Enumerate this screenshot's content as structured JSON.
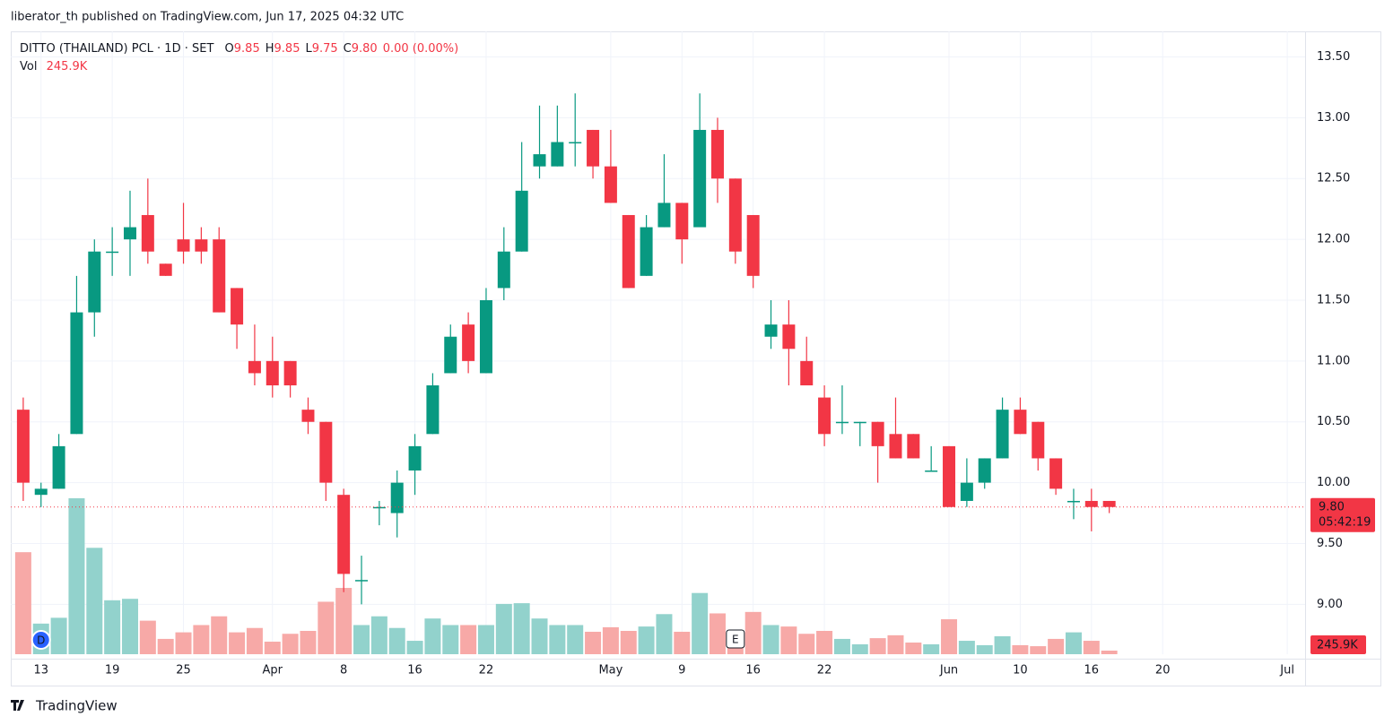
{
  "published": "liberator_th published on TradingView.com, Jun 17, 2025 04:32 UTC",
  "footer": "TradingView",
  "chart_data": {
    "type": "candlestick",
    "title": "DITTO (THAILAND) PCL · 1D · SET",
    "legend_fields": [
      {
        "label": "O",
        "value": "9.85"
      },
      {
        "label": "H",
        "value": "9.85"
      },
      {
        "label": "L",
        "value": "9.75"
      },
      {
        "label": "C",
        "value": "9.80"
      }
    ],
    "change": "0.00 (0.00%)",
    "volume_title": "Vol",
    "volume_label": "245.9K",
    "last_price_label": "9.80",
    "last_price": 9.8,
    "countdown": "05:42:19",
    "markers": [
      {
        "x": 1,
        "label": "D"
      },
      {
        "x": 40,
        "label": "E"
      }
    ],
    "up_color": "#089981",
    "down_color": "#f23645",
    "up_volume_color": "#92d2cc",
    "down_volume_color": "#f7a9a7",
    "grid": true,
    "open": [
      10.6,
      9.9,
      9.95,
      10.4,
      11.4,
      11.9,
      12.0,
      12.2,
      11.8,
      12.0,
      12.0,
      12.0,
      11.6,
      11.0,
      11.0,
      11.0,
      10.6,
      10.5,
      9.9,
      9.2,
      9.8,
      9.75,
      10.1,
      10.4,
      10.9,
      11.3,
      10.9,
      11.6,
      11.9,
      12.6,
      12.6,
      12.8,
      12.9,
      12.6,
      12.2,
      11.7,
      12.1,
      12.3,
      12.1,
      12.9,
      12.5,
      12.2,
      11.2,
      11.3,
      11.0,
      10.7,
      10.5,
      10.5,
      10.5,
      10.4,
      10.4,
      10.1,
      10.3,
      9.85,
      10.0,
      10.2,
      10.6,
      10.5,
      10.2,
      9.85,
      9.85,
      9.85
    ],
    "high": [
      10.7,
      10.0,
      10.4,
      11.7,
      12.0,
      12.1,
      12.4,
      12.5,
      11.8,
      12.3,
      12.1,
      12.1,
      11.6,
      11.3,
      11.2,
      11.0,
      10.7,
      10.5,
      9.95,
      9.4,
      9.85,
      10.1,
      10.4,
      10.9,
      11.3,
      11.4,
      11.6,
      12.1,
      12.8,
      13.1,
      13.1,
      13.2,
      12.9,
      12.9,
      12.2,
      12.2,
      12.7,
      12.3,
      13.2,
      13.0,
      12.5,
      12.2,
      11.5,
      11.5,
      11.2,
      10.8,
      10.8,
      10.5,
      10.5,
      10.7,
      10.4,
      10.3,
      10.3,
      10.2,
      10.2,
      10.7,
      10.7,
      10.5,
      10.2,
      9.95,
      9.95,
      9.85
    ],
    "low": [
      9.85,
      9.8,
      9.95,
      10.4,
      11.2,
      11.7,
      11.7,
      11.8,
      11.7,
      11.8,
      11.8,
      11.4,
      11.1,
      10.8,
      10.7,
      10.7,
      10.4,
      9.85,
      9.1,
      9.0,
      9.65,
      9.55,
      9.9,
      10.4,
      10.9,
      10.9,
      10.9,
      11.5,
      11.9,
      12.5,
      12.6,
      12.6,
      12.5,
      12.3,
      11.6,
      11.7,
      12.1,
      11.8,
      12.1,
      12.3,
      11.8,
      11.6,
      11.1,
      10.8,
      10.8,
      10.3,
      10.4,
      10.3,
      10.0,
      10.2,
      10.2,
      10.1,
      9.8,
      9.8,
      9.95,
      10.2,
      10.4,
      10.1,
      9.9,
      9.7,
      9.6,
      9.75
    ],
    "close": [
      10.0,
      9.95,
      10.3,
      11.4,
      11.9,
      11.9,
      12.1,
      11.9,
      11.7,
      11.9,
      11.9,
      11.4,
      11.3,
      10.9,
      10.8,
      10.8,
      10.5,
      10.0,
      9.25,
      9.2,
      9.8,
      10.0,
      10.3,
      10.8,
      11.2,
      11.0,
      11.5,
      11.9,
      12.4,
      12.7,
      12.8,
      12.8,
      12.6,
      12.3,
      11.6,
      12.1,
      12.3,
      12.0,
      12.9,
      12.5,
      11.9,
      11.7,
      11.3,
      11.1,
      10.8,
      10.4,
      10.5,
      10.5,
      10.3,
      10.2,
      10.2,
      10.1,
      9.8,
      10.0,
      10.2,
      10.6,
      10.4,
      10.2,
      9.95,
      9.85,
      9.8,
      9.8
    ],
    "volume": [
      7000,
      2100,
      2500,
      10700,
      7300,
      3700,
      3800,
      2300,
      1050,
      1500,
      2000,
      2600,
      1500,
      1800,
      860,
      1400,
      1600,
      3600,
      4550,
      2000,
      2600,
      1800,
      920,
      2450,
      2000,
      2000,
      2000,
      3450,
      3500,
      2450,
      2000,
      2000,
      1540,
      1850,
      1600,
      1900,
      2750,
      1540,
      4200,
      2800,
      1540,
      2900,
      2000,
      1900,
      1400,
      1600,
      1050,
      680,
      1100,
      1300,
      800,
      680,
      2400,
      920,
      620,
      1230,
      620,
      550,
      1050,
      1500,
      920,
      245.9
    ],
    "xlim": [
      -0.7,
      72
    ],
    "xticks": [
      {
        "value": 1,
        "label": "13"
      },
      {
        "value": 5,
        "label": "19"
      },
      {
        "value": 9,
        "label": "25"
      },
      {
        "value": 14,
        "label": "Apr"
      },
      {
        "value": 18,
        "label": "8"
      },
      {
        "value": 22,
        "label": "16"
      },
      {
        "value": 26,
        "label": "22"
      },
      {
        "value": 33,
        "label": "May"
      },
      {
        "value": 37,
        "label": "9"
      },
      {
        "value": 41,
        "label": "16"
      },
      {
        "value": 45,
        "label": "22"
      },
      {
        "value": 52,
        "label": "Jun"
      },
      {
        "value": 56,
        "label": "10"
      },
      {
        "value": 60,
        "label": "16"
      },
      {
        "value": 64,
        "label": "20"
      },
      {
        "value": 71,
        "label": "Jul"
      }
    ],
    "ylim": [
      8.59,
      13.71
    ],
    "yticks": [
      {
        "value": 9.0,
        "label": "9.00"
      },
      {
        "value": 9.5,
        "label": "9.50"
      },
      {
        "value": 10.0,
        "label": "10.00"
      },
      {
        "value": 10.5,
        "label": "10.50"
      },
      {
        "value": 11.0,
        "label": "11.00"
      },
      {
        "value": 11.5,
        "label": "11.50"
      },
      {
        "value": 12.0,
        "label": "12.00"
      },
      {
        "value": 12.5,
        "label": "12.50"
      },
      {
        "value": 13.0,
        "label": "13.00"
      },
      {
        "value": 13.5,
        "label": "13.50"
      }
    ]
  }
}
